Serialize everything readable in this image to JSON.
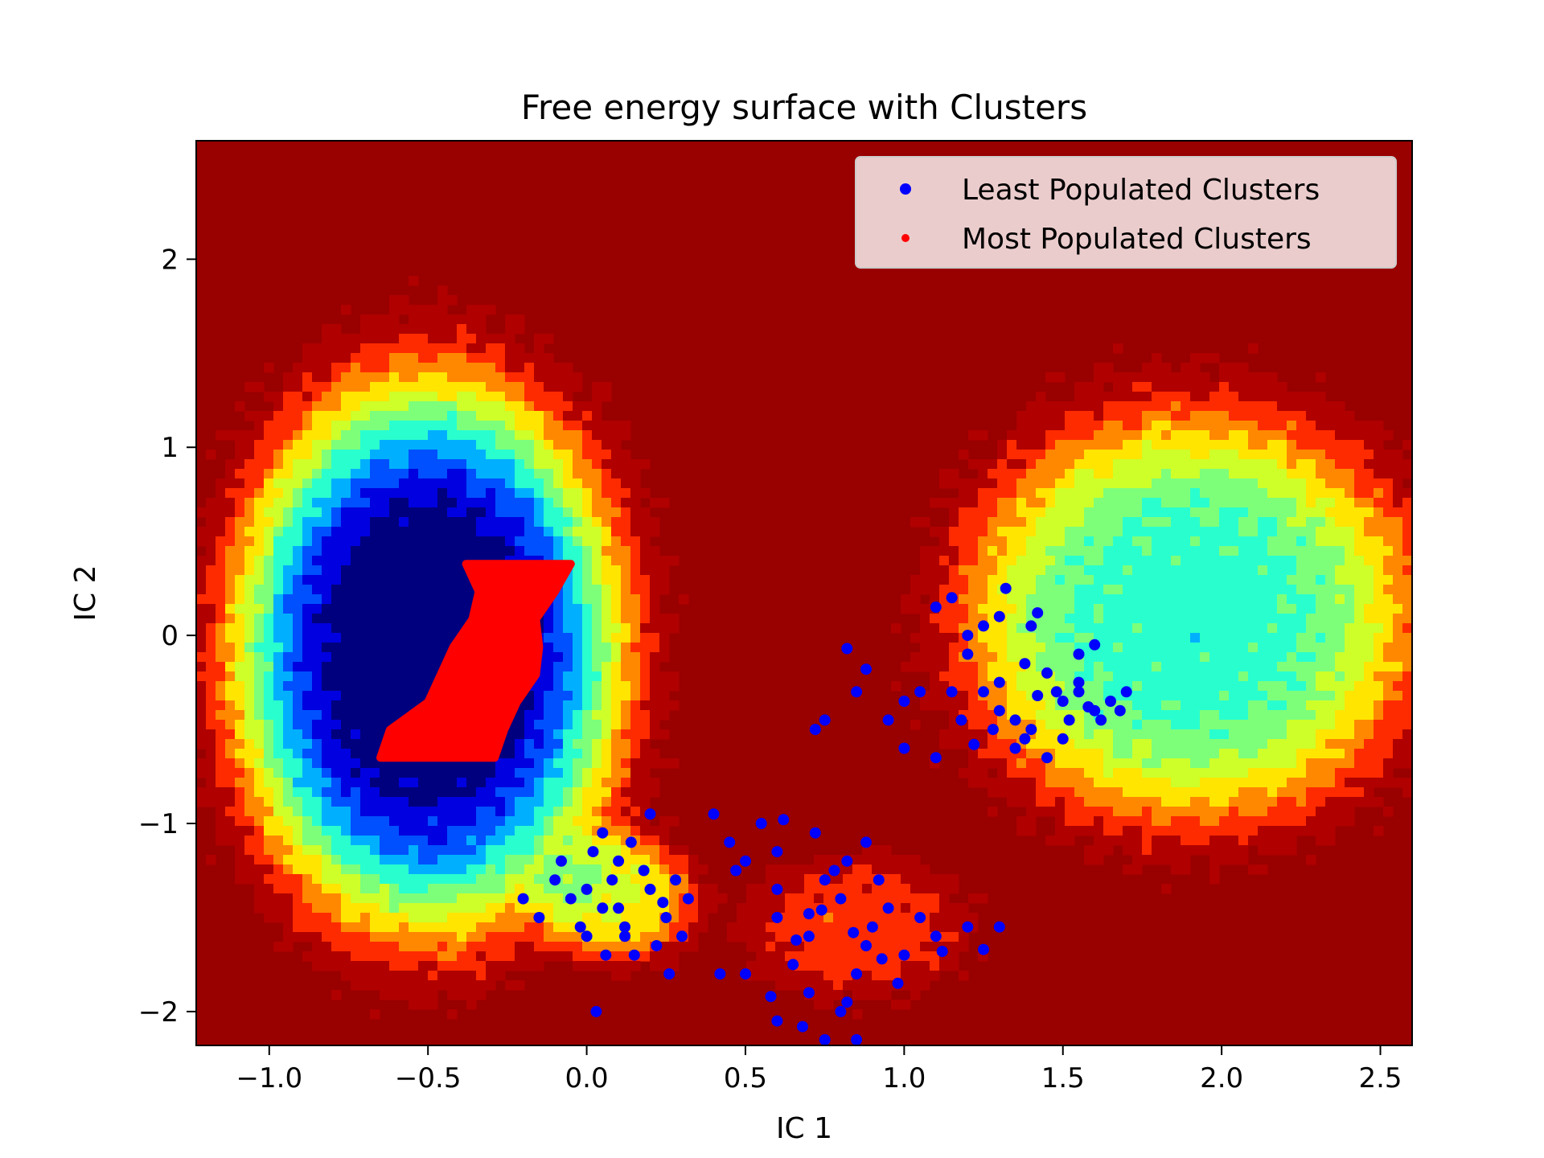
{
  "chart_data": {
    "type": "scatter",
    "title": "Free energy surface with Clusters",
    "xlabel": "IC 1",
    "ylabel": "IC 2",
    "xlim": [
      -1.23,
      2.6
    ],
    "ylim": [
      -2.18,
      2.63
    ],
    "xticks": [
      -1.0,
      -0.5,
      0.0,
      0.5,
      1.0,
      1.5,
      2.0,
      2.5
    ],
    "xtick_labels": [
      "−1.0",
      "−0.5",
      "0.0",
      "0.5",
      "1.0",
      "1.5",
      "2.0",
      "2.5"
    ],
    "yticks": [
      -2,
      -1,
      0,
      1,
      2
    ],
    "ytick_labels": [
      "−2",
      "−1",
      "0",
      "1",
      "2"
    ],
    "legend_position": "top-right",
    "grid": false,
    "background": {
      "type": "filled-contour",
      "colormap": "jet",
      "max_color": "#990000",
      "basins": [
        {
          "center": [
            -0.5,
            -0.1
          ],
          "spread": [
            0.52,
            1.25
          ],
          "depth": 1.0
        },
        {
          "center": [
            1.9,
            0.1
          ],
          "spread": [
            0.62,
            0.95
          ],
          "depth": 0.62
        },
        {
          "center": [
            0.1,
            -1.4
          ],
          "spread": [
            0.22,
            0.3
          ],
          "depth": 0.38
        },
        {
          "center": [
            0.85,
            -1.55
          ],
          "spread": [
            0.32,
            0.35
          ],
          "depth": 0.2
        }
      ]
    },
    "series": [
      {
        "name": "Least Populated Clusters",
        "color": "#0000ff",
        "points": [
          [
            0.05,
            -1.45
          ],
          [
            0.12,
            -1.55
          ],
          [
            0.2,
            -1.35
          ],
          [
            0.0,
            -1.6
          ],
          [
            0.08,
            -1.3
          ],
          [
            -0.05,
            -1.4
          ],
          [
            0.15,
            -1.7
          ],
          [
            0.25,
            -1.5
          ],
          [
            0.1,
            -1.2
          ],
          [
            -0.1,
            -1.3
          ],
          [
            0.3,
            -1.6
          ],
          [
            0.18,
            -1.25
          ],
          [
            0.02,
            -1.15
          ],
          [
            -0.15,
            -1.5
          ],
          [
            0.22,
            -1.65
          ],
          [
            0.28,
            -1.3
          ],
          [
            0.06,
            -1.7
          ],
          [
            0.14,
            -1.1
          ],
          [
            -0.08,
            -1.2
          ],
          [
            0.32,
            -1.4
          ],
          [
            0.0,
            -1.35
          ],
          [
            0.1,
            -1.45
          ],
          [
            0.26,
            -1.8
          ],
          [
            0.05,
            -1.05
          ],
          [
            -0.2,
            -1.4
          ],
          [
            0.2,
            -0.95
          ],
          [
            0.03,
            -2.0
          ],
          [
            0.12,
            -1.6
          ],
          [
            -0.02,
            -1.55
          ],
          [
            0.24,
            -1.42
          ],
          [
            0.6,
            -1.5
          ],
          [
            0.7,
            -1.6
          ],
          [
            0.8,
            -1.4
          ],
          [
            0.9,
            -1.55
          ],
          [
            1.0,
            -1.7
          ],
          [
            0.75,
            -1.3
          ],
          [
            0.85,
            -1.8
          ],
          [
            0.65,
            -1.75
          ],
          [
            0.95,
            -1.45
          ],
          [
            1.1,
            -1.6
          ],
          [
            0.7,
            -1.9
          ],
          [
            0.8,
            -2.0
          ],
          [
            0.78,
            -1.25
          ],
          [
            0.88,
            -1.65
          ],
          [
            1.05,
            -1.5
          ],
          [
            0.6,
            -1.15
          ],
          [
            0.72,
            -1.05
          ],
          [
            0.55,
            -1.0
          ],
          [
            0.62,
            -0.98
          ],
          [
            0.82,
            -1.2
          ],
          [
            0.92,
            -1.3
          ],
          [
            1.2,
            -1.55
          ],
          [
            1.3,
            -1.55
          ],
          [
            0.85,
            -2.15
          ],
          [
            0.75,
            -2.15
          ],
          [
            0.6,
            -2.05
          ],
          [
            0.68,
            -2.08
          ],
          [
            0.5,
            -1.8
          ],
          [
            0.42,
            -1.8
          ],
          [
            1.25,
            -1.67
          ],
          [
            0.58,
            -1.92
          ],
          [
            0.98,
            -1.85
          ],
          [
            0.74,
            -1.46
          ],
          [
            0.84,
            -1.58
          ],
          [
            0.66,
            -1.62
          ],
          [
            0.93,
            -1.72
          ],
          [
            1.12,
            -1.68
          ],
          [
            0.45,
            -1.1
          ],
          [
            0.47,
            -1.25
          ],
          [
            0.4,
            -0.95
          ],
          [
            0.5,
            -1.2
          ],
          [
            0.82,
            -1.95
          ],
          [
            0.7,
            -1.48
          ],
          [
            0.6,
            -1.35
          ],
          [
            0.88,
            -1.1
          ],
          [
            1.3,
            -0.4
          ],
          [
            1.4,
            -0.5
          ],
          [
            1.5,
            -0.35
          ],
          [
            1.45,
            -0.2
          ],
          [
            1.6,
            -0.4
          ],
          [
            1.35,
            -0.6
          ],
          [
            1.55,
            -0.25
          ],
          [
            1.25,
            -0.3
          ],
          [
            1.2,
            -0.1
          ],
          [
            1.3,
            0.1
          ],
          [
            1.15,
            0.2
          ],
          [
            1.4,
            0.05
          ],
          [
            1.65,
            -0.35
          ],
          [
            1.7,
            -0.3
          ],
          [
            1.5,
            -0.55
          ],
          [
            1.35,
            -0.45
          ],
          [
            1.45,
            -0.65
          ],
          [
            1.2,
            0.0
          ],
          [
            1.25,
            0.05
          ],
          [
            1.1,
            0.15
          ],
          [
            1.0,
            -0.35
          ],
          [
            0.95,
            -0.45
          ],
          [
            0.85,
            -0.3
          ],
          [
            0.82,
            -0.07
          ],
          [
            0.75,
            -0.45
          ],
          [
            0.72,
            -0.5
          ],
          [
            0.88,
            -0.18
          ],
          [
            1.05,
            -0.3
          ],
          [
            1.0,
            -0.6
          ],
          [
            1.1,
            -0.65
          ],
          [
            1.15,
            -0.3
          ],
          [
            1.55,
            -0.1
          ],
          [
            1.6,
            -0.05
          ],
          [
            1.62,
            -0.45
          ],
          [
            1.38,
            -0.55
          ],
          [
            1.48,
            -0.3
          ],
          [
            1.52,
            -0.45
          ],
          [
            1.3,
            -0.25
          ],
          [
            1.42,
            -0.32
          ],
          [
            1.58,
            -0.38
          ],
          [
            1.32,
            0.25
          ],
          [
            1.42,
            0.12
          ],
          [
            1.38,
            -0.15
          ],
          [
            1.28,
            -0.5
          ],
          [
            1.22,
            -0.58
          ],
          [
            1.68,
            -0.4
          ],
          [
            1.18,
            -0.45
          ],
          [
            1.55,
            -0.3
          ]
        ]
      },
      {
        "name": "Most Populated Clusters",
        "color": "#ff0000",
        "regions": [
          {
            "y": [
              -0.65,
              0.38
            ],
            "x_left": [
              -0.38,
              -0.34,
              -0.36,
              -0.42,
              -0.46,
              -0.5,
              -0.62,
              -0.65
            ],
            "x_right": [
              -0.05,
              -0.1,
              -0.16,
              -0.15,
              -0.16,
              -0.22,
              -0.26,
              -0.29
            ]
          }
        ]
      }
    ]
  }
}
